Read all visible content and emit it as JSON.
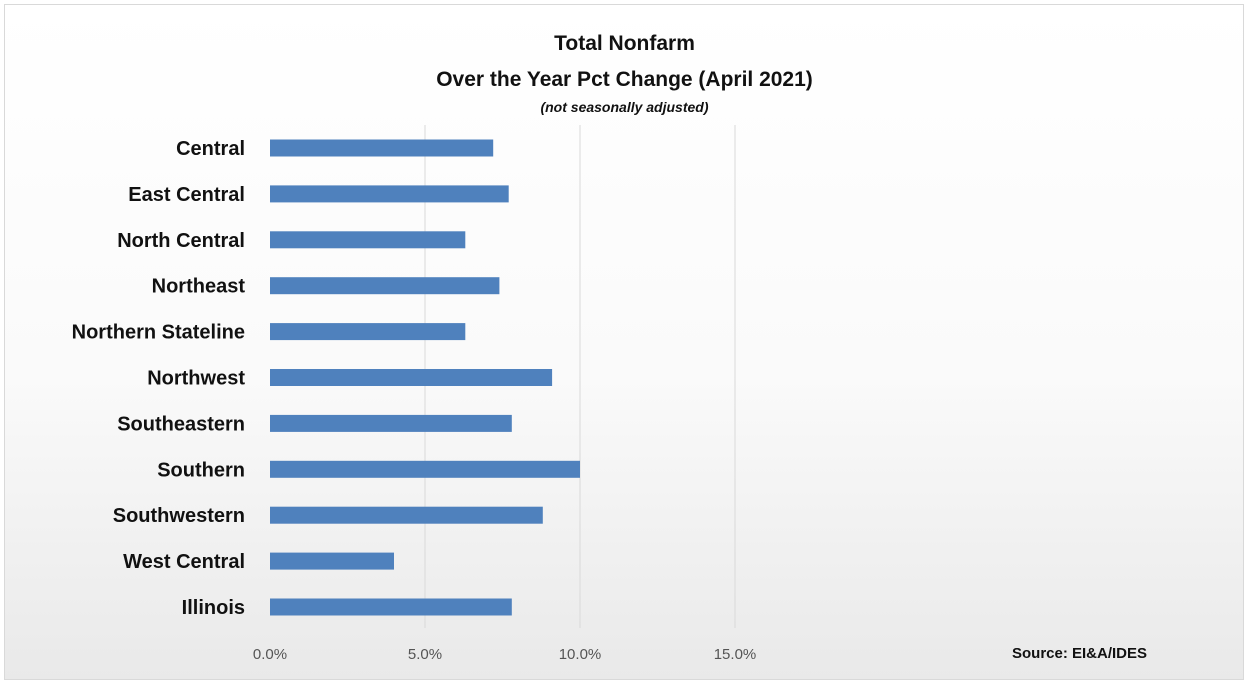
{
  "chart_data": {
    "type": "bar",
    "orientation": "horizontal",
    "title": "Total Nonfarm",
    "title_line2": "Over the Year Pct Change (April 2021)",
    "subtitle": "(not seasonally adjusted)",
    "source": "Source: EI&A/IDES",
    "categories": [
      "Central",
      "East Central",
      "North Central",
      "Northeast",
      "Northern Stateline",
      "Northwest",
      "Southeastern",
      "Southern",
      "Southwestern",
      "West Central",
      "Illinois"
    ],
    "values": [
      7.2,
      7.7,
      6.3,
      7.4,
      6.3,
      9.1,
      7.8,
      10.0,
      8.8,
      4.0,
      7.8
    ],
    "xlim": [
      0,
      15
    ],
    "x_ticks": [
      0,
      5,
      10,
      15
    ],
    "x_tick_labels": [
      "0.0%",
      "5.0%",
      "10.0%",
      "15.0%"
    ],
    "grid": "vertical",
    "legend": "none",
    "bar_color": "#4f81bd",
    "grid_color": "#d9d9d9"
  }
}
